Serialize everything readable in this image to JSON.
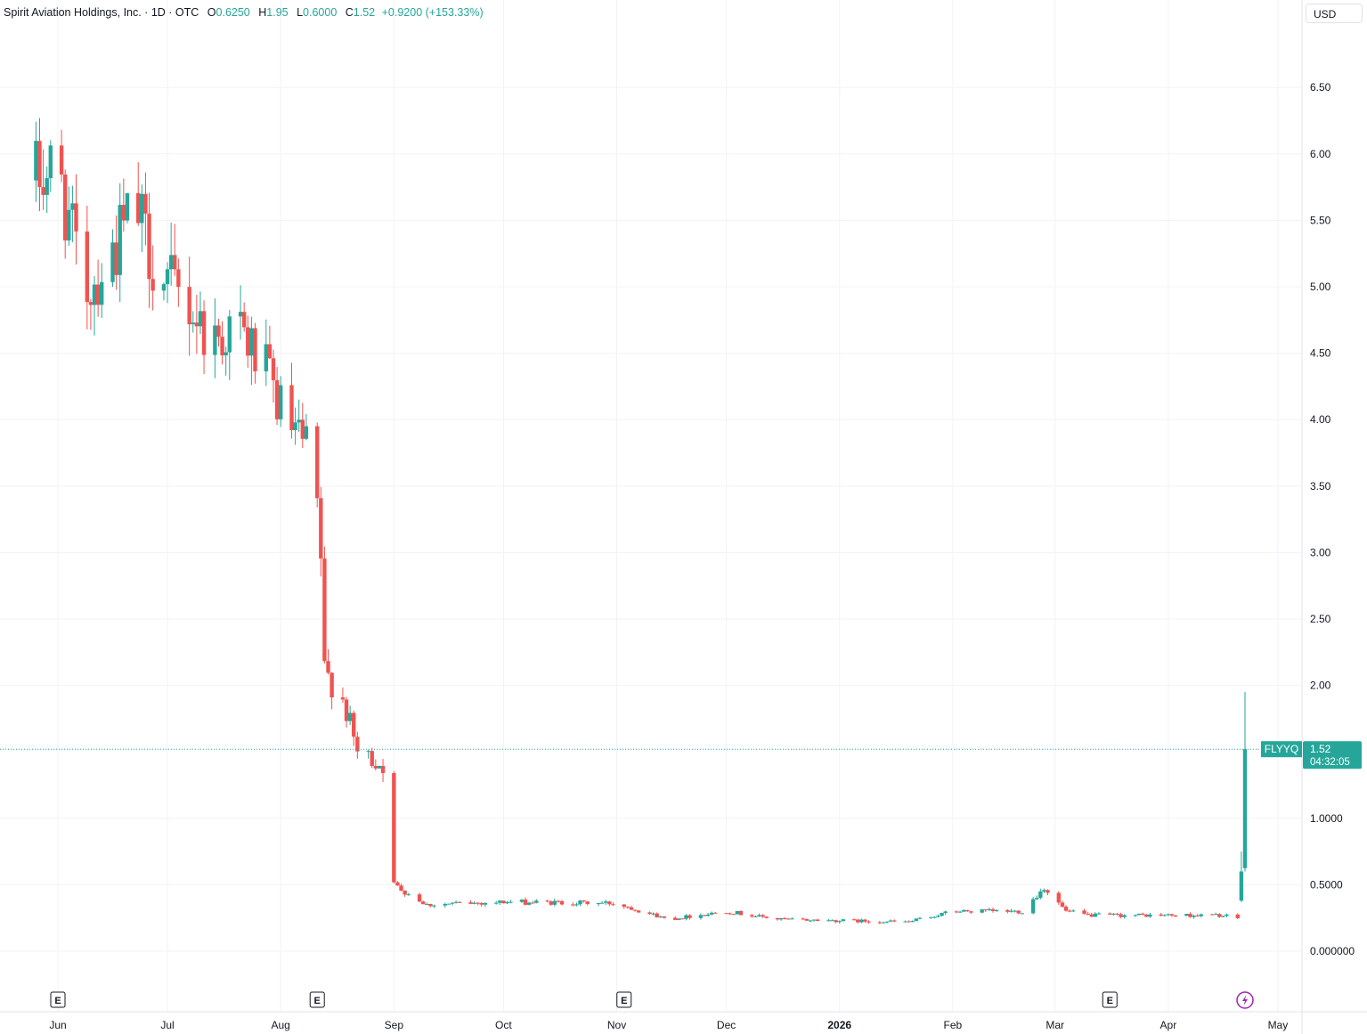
{
  "header": {
    "symbol_title": "Spirit Aviation Holdings, Inc. · 1D · OTC",
    "open_label": "O",
    "open_value": "0.6250",
    "high_label": "H",
    "high_value": "1.95",
    "low_label": "L",
    "low_value": "0.6000",
    "close_label": "C",
    "close_value": "1.52",
    "change_value": "+0.9200 (+153.33%)"
  },
  "currency_label": "USD",
  "price_tag": {
    "ticker": "FLYYQ",
    "price": "1.52",
    "countdown": "04:32:05"
  },
  "colors": {
    "up": "#26a69a",
    "down": "#ef5350",
    "grid": "#f0f3fa",
    "lightning": "#9c27b0"
  },
  "event_markers": {
    "earnings_letter": "E",
    "earnings_months": [
      "Jun",
      "Aug",
      "Nov",
      "Mar"
    ]
  },
  "chart_data": {
    "type": "candlestick",
    "interval": "1D",
    "y_ticks": [
      "6.50",
      "6.00",
      "5.50",
      "5.00",
      "4.50",
      "4.00",
      "3.50",
      "3.00",
      "2.50",
      "2.00",
      "1.0000",
      "0.5000",
      "0.000000"
    ],
    "y_tick_values": [
      6.5,
      6.0,
      5.5,
      5.0,
      4.5,
      4.0,
      3.5,
      3.0,
      2.5,
      2.0,
      1.0,
      0.5,
      0.0
    ],
    "x_ticks": [
      "Jun",
      "Jul",
      "Aug",
      "Sep",
      "Oct",
      "Nov",
      "Dec",
      "2026",
      "Feb",
      "Mar",
      "Apr",
      "May"
    ],
    "x_tick_bold": [
      "2026"
    ],
    "last_price": 1.52,
    "anchors": [
      {
        "date": "2025-05-25",
        "price": 5.8
      },
      {
        "date": "2025-06-01",
        "price": 5.9
      },
      {
        "date": "2025-06-08",
        "price": 4.95
      },
      {
        "date": "2025-06-15",
        "price": 5.2
      },
      {
        "date": "2025-06-22",
        "price": 5.6
      },
      {
        "date": "2025-06-29",
        "price": 5.05
      },
      {
        "date": "2025-07-06",
        "price": 4.9
      },
      {
        "date": "2025-07-13",
        "price": 4.6
      },
      {
        "date": "2025-07-20",
        "price": 4.7
      },
      {
        "date": "2025-07-27",
        "price": 4.4
      },
      {
        "date": "2025-08-03",
        "price": 3.95
      },
      {
        "date": "2025-08-10",
        "price": 3.7
      },
      {
        "date": "2025-08-12",
        "price": 2.95
      },
      {
        "date": "2025-08-13",
        "price": 2.1
      },
      {
        "date": "2025-08-18",
        "price": 1.9
      },
      {
        "date": "2025-08-22",
        "price": 1.5
      },
      {
        "date": "2025-08-29",
        "price": 1.4
      },
      {
        "date": "2025-09-01",
        "price": 0.5
      },
      {
        "date": "2025-09-10",
        "price": 0.35
      },
      {
        "date": "2025-10-01",
        "price": 0.37
      },
      {
        "date": "2025-11-01",
        "price": 0.36
      },
      {
        "date": "2025-11-15",
        "price": 0.24
      },
      {
        "date": "2025-12-01",
        "price": 0.3
      },
      {
        "date": "2025-12-15",
        "price": 0.24
      },
      {
        "date": "2026-01-01",
        "price": 0.23
      },
      {
        "date": "2026-01-20",
        "price": 0.22
      },
      {
        "date": "2026-02-01",
        "price": 0.3
      },
      {
        "date": "2026-02-20",
        "price": 0.3
      },
      {
        "date": "2026-02-26",
        "price": 0.48
      },
      {
        "date": "2026-03-04",
        "price": 0.3
      },
      {
        "date": "2026-03-10",
        "price": 0.27
      },
      {
        "date": "2026-04-15",
        "price": 0.27
      },
      {
        "date": "2026-04-20",
        "price": 0.25
      }
    ],
    "final_candles": [
      {
        "date": "2026-04-21",
        "open": 0.38,
        "high": 0.75,
        "low": 0.37,
        "close": 0.6
      },
      {
        "date": "2026-04-22",
        "open": 0.625,
        "high": 1.95,
        "low": 0.6,
        "close": 1.52
      }
    ]
  }
}
